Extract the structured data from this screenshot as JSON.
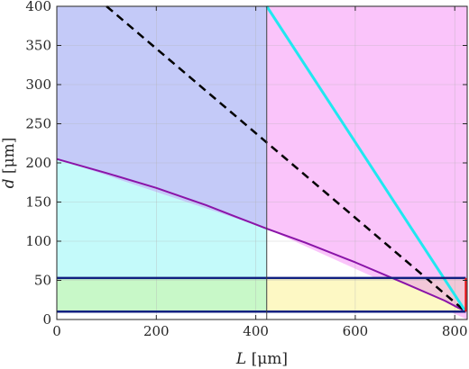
{
  "chart_data": {
    "type": "line",
    "xlabel": {
      "var": "L",
      "unit": "[μm]"
    },
    "ylabel": {
      "var": "d",
      "unit": "[μm]"
    },
    "xlim": [
      0,
      825
    ],
    "ylim": [
      0,
      400
    ],
    "xticks": [
      0,
      200,
      400,
      600,
      800
    ],
    "yticks": [
      0,
      50,
      100,
      150,
      200,
      250,
      300,
      350,
      400
    ],
    "grid": true,
    "legend": "none",
    "colors": {
      "blue_region": "#c4caf8",
      "magenta_region": "#fac4fa",
      "cyan_region": "#c4fafa",
      "green_region": "#c8f8c8",
      "yellow_region": "#fdf8c4",
      "pink_region": "#f2c8d8",
      "purple_curve": "#8a14a8",
      "dashed_line": "#000000",
      "cyan_line": "#20e8f0",
      "navy_lines": "#102080",
      "red_segment": "#e81010"
    },
    "regions": [
      {
        "id": "blue",
        "x": [
          0,
          422,
          422,
          0
        ],
        "y": [
          400,
          400,
          116,
          205
        ]
      },
      {
        "id": "cyan",
        "x": [
          0,
          422,
          422,
          0
        ],
        "y": [
          205,
          116,
          53,
          53
        ]
      },
      {
        "id": "green",
        "x": [
          0,
          422,
          422,
          0
        ],
        "y": [
          53,
          53,
          10,
          10
        ]
      },
      {
        "id": "magenta",
        "x": [
          422,
          825,
          825,
          422
        ],
        "y": [
          400,
          400,
          0,
          116
        ]
      },
      {
        "id": "yellow",
        "x": [
          422,
          680,
          822,
          822,
          422
        ],
        "y": [
          53,
          53,
          10,
          10,
          10
        ]
      },
      {
        "id": "pink",
        "x": [
          680,
          822,
          822
        ],
        "y": [
          53,
          53,
          10
        ]
      }
    ],
    "series": [
      {
        "id": "purple",
        "x": [
          0,
          100,
          200,
          300,
          422,
          500,
          600,
          700,
          780,
          822
        ],
        "y": [
          205,
          187,
          168,
          146,
          116,
          98,
          73,
          46,
          24,
          10
        ]
      },
      {
        "id": "dashed",
        "x": [
          100,
          822
        ],
        "y": [
          400,
          10
        ]
      },
      {
        "id": "cyan",
        "x": [
          422,
          822
        ],
        "y": [
          400,
          10
        ]
      },
      {
        "id": "navy_top",
        "x": [
          0,
          822
        ],
        "y": [
          53,
          53
        ]
      },
      {
        "id": "navy_bottom",
        "x": [
          0,
          822
        ],
        "y": [
          10,
          10
        ]
      },
      {
        "id": "vertical",
        "x": [
          422,
          422
        ],
        "y": [
          0,
          400
        ]
      },
      {
        "id": "red",
        "x": [
          822,
          822
        ],
        "y": [
          53,
          10
        ]
      }
    ]
  }
}
